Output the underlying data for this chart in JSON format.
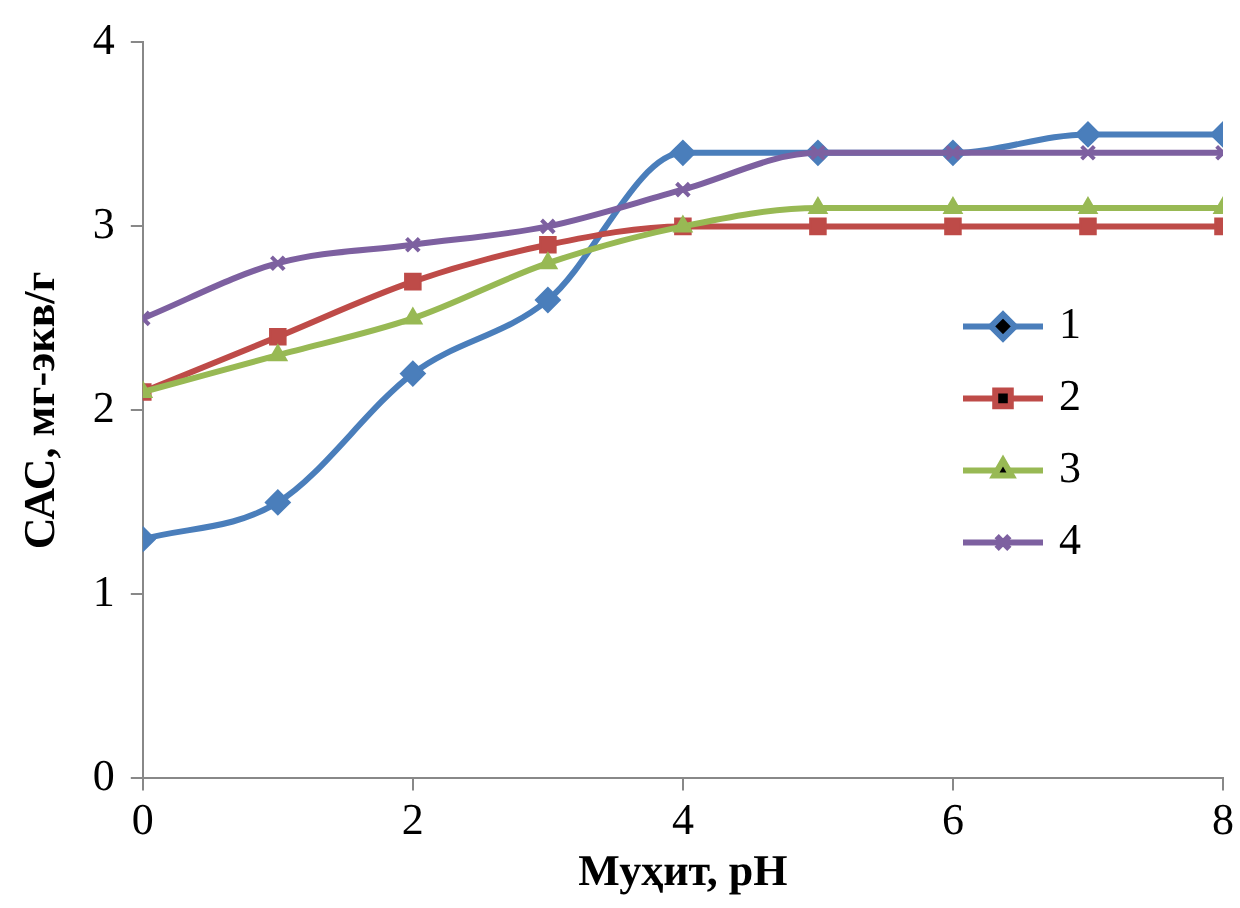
{
  "chart_data": {
    "type": "line",
    "xlabel": "Муҳит, pH",
    "ylabel": "САС, мг-экв/г",
    "x": [
      0,
      1,
      2,
      3,
      4,
      5,
      6,
      7,
      8
    ],
    "xlim": [
      0,
      8
    ],
    "xticks": [
      0,
      2,
      4,
      6,
      8
    ],
    "ylim": [
      0,
      4
    ],
    "yticks": [
      0,
      1,
      2,
      3,
      4
    ],
    "grid": false,
    "legend": "right",
    "series": [
      {
        "name": "1",
        "color": "#4a7ebb",
        "marker": "diamond",
        "values": [
          1.3,
          1.5,
          2.2,
          2.6,
          3.4,
          3.4,
          3.4,
          3.5,
          3.5
        ]
      },
      {
        "name": "2",
        "color": "#be4b48",
        "marker": "square",
        "values": [
          2.1,
          2.4,
          2.7,
          2.9,
          3.0,
          3.0,
          3.0,
          3.0,
          3.0
        ]
      },
      {
        "name": "3",
        "color": "#98b954",
        "marker": "triangle",
        "values": [
          2.1,
          2.3,
          2.5,
          2.8,
          3.0,
          3.1,
          3.1,
          3.1,
          3.1
        ]
      },
      {
        "name": "4",
        "color": "#7d60a0",
        "marker": "cross",
        "values": [
          2.5,
          2.8,
          2.9,
          3.0,
          3.2,
          3.4,
          3.4,
          3.4,
          3.4
        ]
      }
    ]
  }
}
